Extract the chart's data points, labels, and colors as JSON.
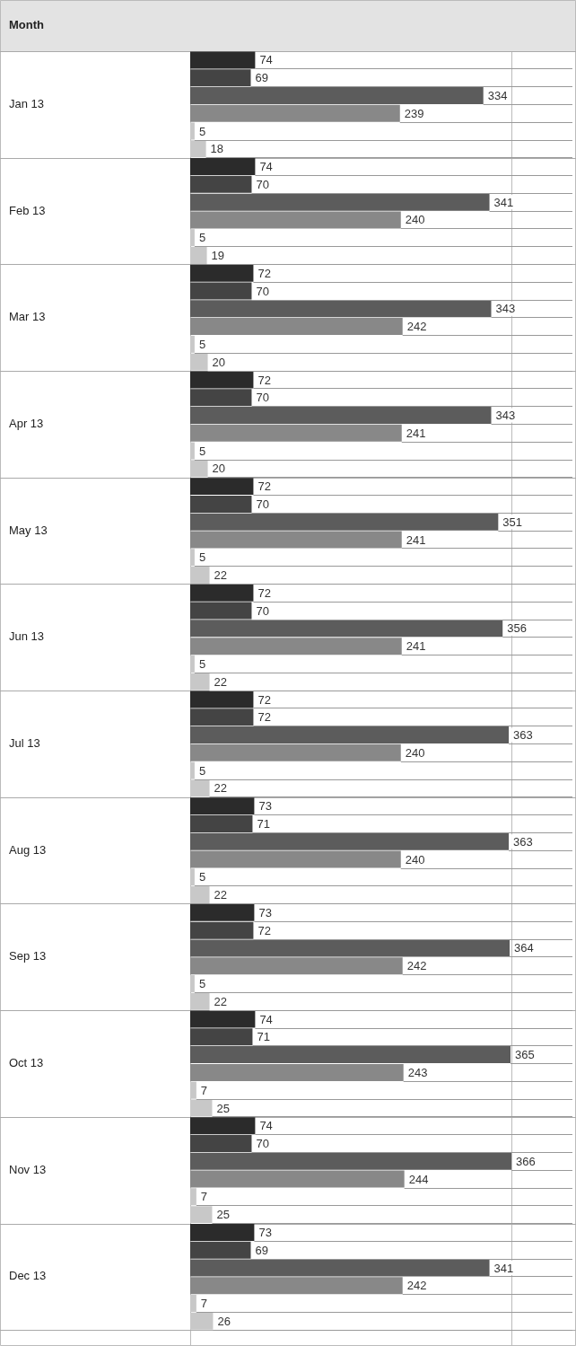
{
  "chart_data": {
    "type": "bar",
    "orientation": "horizontal",
    "ylabel": "Month",
    "data_labels": true,
    "legend": false,
    "xlim": [
      0,
      366
    ],
    "categories": [
      "Jan 13",
      "Feb 13",
      "Mar 13",
      "Apr 13",
      "May 13",
      "Jun 13",
      "Jul 13",
      "Aug 13",
      "Sep 13",
      "Oct 13",
      "Nov 13",
      "Dec 13"
    ],
    "series": [
      {
        "color": "#2b2b2b",
        "values": [
          74,
          74,
          72,
          72,
          72,
          72,
          72,
          73,
          73,
          74,
          74,
          73
        ]
      },
      {
        "color": "#444444",
        "values": [
          69,
          70,
          70,
          70,
          70,
          70,
          72,
          71,
          72,
          71,
          70,
          69
        ]
      },
      {
        "color": "#5c5c5c",
        "values": [
          334,
          341,
          343,
          343,
          351,
          356,
          363,
          363,
          364,
          365,
          366,
          341
        ]
      },
      {
        "color": "#888888",
        "values": [
          239,
          240,
          242,
          241,
          241,
          241,
          240,
          240,
          242,
          243,
          244,
          242
        ]
      },
      {
        "color": "#c8c8c8",
        "values": [
          5,
          5,
          5,
          5,
          5,
          5,
          5,
          5,
          5,
          7,
          7,
          7
        ]
      },
      {
        "color": "#c8c8c8",
        "values": [
          18,
          19,
          20,
          20,
          22,
          22,
          22,
          22,
          22,
          25,
          25,
          26
        ]
      }
    ]
  }
}
